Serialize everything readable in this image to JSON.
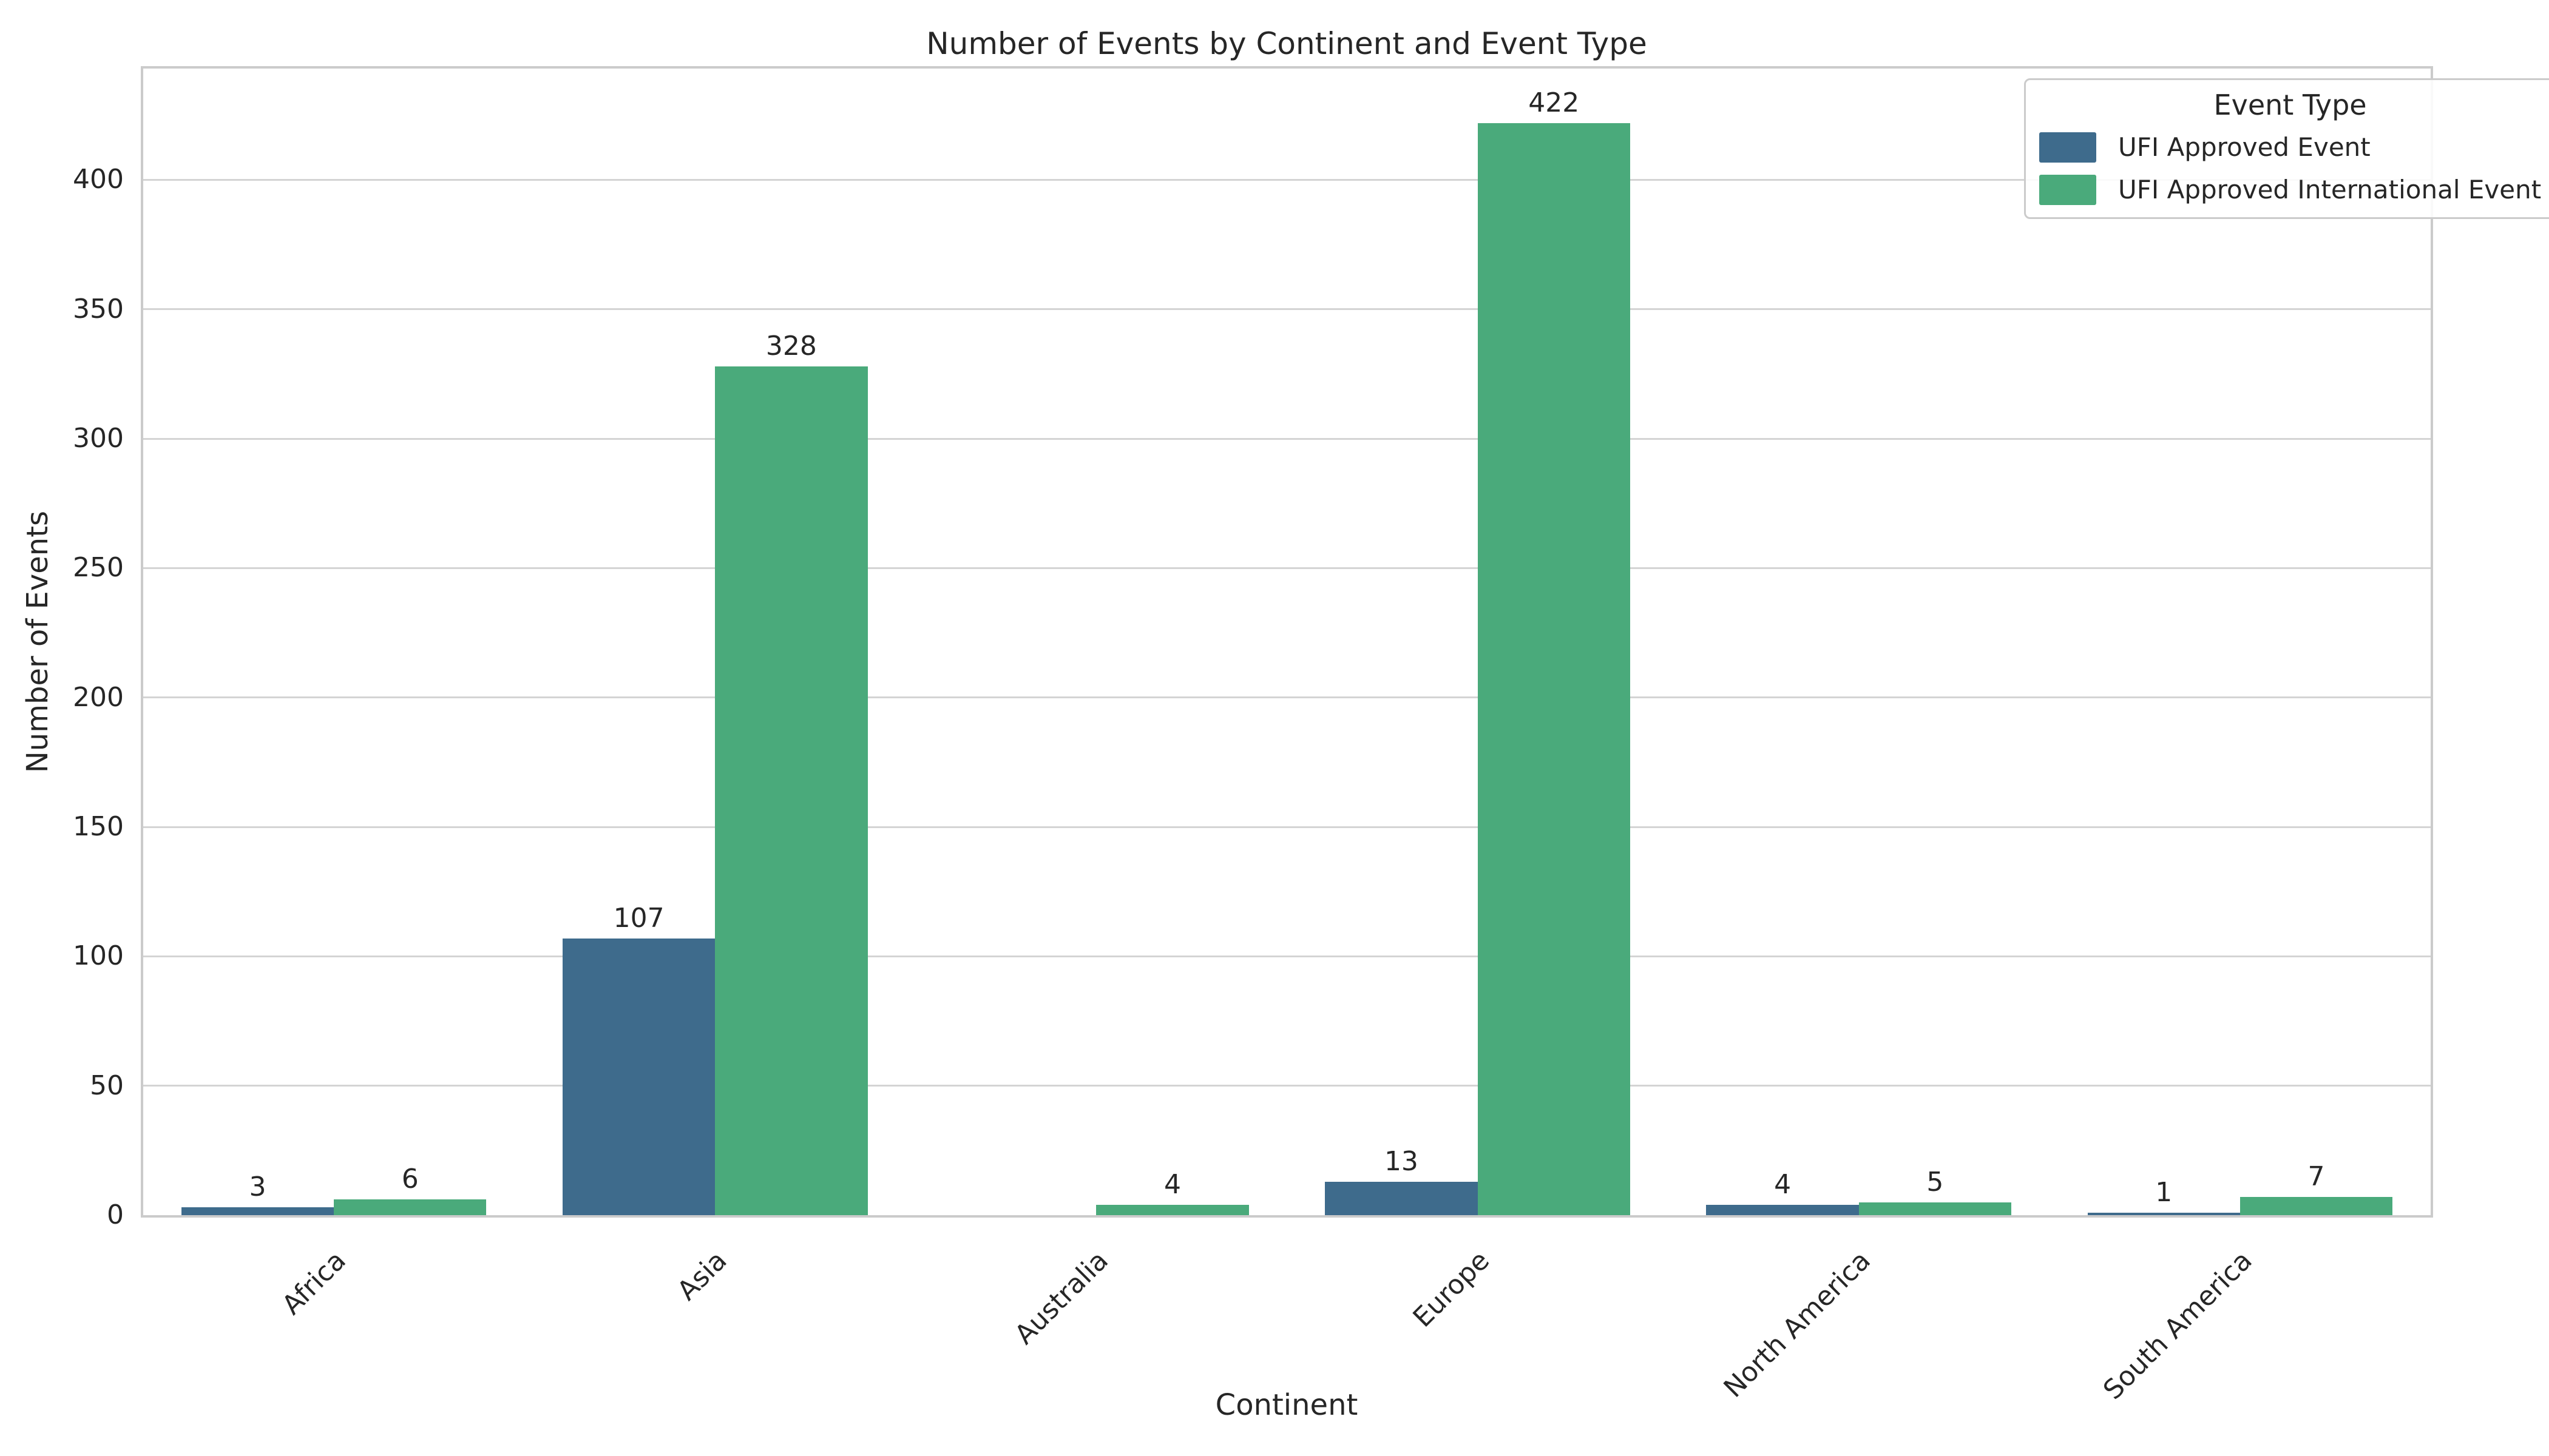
{
  "chart_data": {
    "type": "bar",
    "title": "Number of Events by Continent and Event Type",
    "xlabel": "Continent",
    "ylabel": "Number of Events",
    "categories": [
      "Africa",
      "Asia",
      "Australia",
      "Europe",
      "North America",
      "South America"
    ],
    "series": [
      {
        "name": "UFI Approved Event",
        "color": "#3e6b8c",
        "values": [
          3,
          107,
          0,
          13,
          4,
          1
        ]
      },
      {
        "name": "UFI Approved International Event",
        "color": "#4aaa7b",
        "values": [
          6,
          328,
          4,
          422,
          5,
          7
        ]
      }
    ],
    "bar_value_labels": true,
    "hide_zero_value_bars": true,
    "ylim": [
      0,
      443
    ],
    "yticks": [
      0,
      50,
      100,
      150,
      200,
      250,
      300,
      350,
      400
    ],
    "legend_title": "Event Type",
    "legend_position": "upper right",
    "grid": "horizontal",
    "colors": {
      "grid": "#d4d4d4",
      "spine": "#cbcbcb",
      "text": "#262626",
      "background": "#ffffff"
    }
  }
}
